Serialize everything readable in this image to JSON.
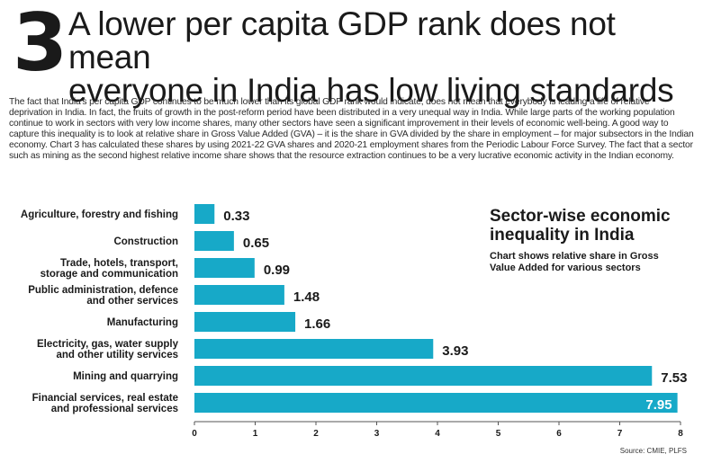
{
  "header": {
    "number": "3",
    "headline_line1": "A lower per capita GDP rank does not mean",
    "headline_line2": "everyone in India has low living standards"
  },
  "intro": "The fact that India's per capita GDP continues to be much lower than its global GDP rank would indicate, does not mean that everybody is leading a life of relative deprivation in India. In fact, the fruits of growth in the post-reform period have been distributed in a very unequal way in India. While large parts of the working population continue to work in sectors with very low income shares, many other sectors have seen a significant improvement in their levels of economic well-being. A good way to capture this inequality is to look at relative share in Gross Value Added (GVA) – it is the share in GVA divided by the share in employment – for major subsectors in the Indian economy. Chart 3 has calculated these shares by using 2021-22 GVA shares and 2020-21 employment shares from the Periodic Labour Force Survey. The fact that a sector such as mining as the second highest relative income share shows that the resource extraction continues to be a very lucrative economic activity in the Indian economy.",
  "annotation": {
    "title_line1": "Sector-wise economic",
    "title_line2": "inequality in India",
    "subtitle_line1": "Chart shows relative share in Gross",
    "subtitle_line2": "Value Added for various sectors"
  },
  "source": "Source: CMIE, PLFS",
  "colors": {
    "bar": "#17a9c8",
    "text": "#1a1a1a",
    "inside_label": "#ffffff"
  },
  "chart_data": {
    "type": "bar",
    "orientation": "horizontal",
    "title": "Sector-wise economic inequality in India",
    "subtitle": "Chart shows relative share in Gross Value Added for various sectors",
    "categories": [
      [
        "Agriculture, forestry and fishing"
      ],
      [
        "Construction"
      ],
      [
        "Trade, hotels, transport,",
        "storage and communication"
      ],
      [
        "Public administration, defence",
        "and other services"
      ],
      [
        "Manufacturing"
      ],
      [
        "Electricity, gas, water supply",
        "and other utility services"
      ],
      [
        "Mining and quarrying"
      ],
      [
        "Financial services, real estate",
        "and professional services"
      ]
    ],
    "values": [
      0.33,
      0.65,
      0.99,
      1.48,
      1.66,
      3.93,
      7.53,
      7.95
    ],
    "value_labels": [
      "0.33",
      "0.65",
      "0.99",
      "1.48",
      "1.66",
      "3.93",
      "7.53",
      "7.95"
    ],
    "xlim": [
      0,
      8
    ],
    "xticks": [
      0,
      1,
      2,
      3,
      4,
      5,
      6,
      7,
      8
    ],
    "grid": false,
    "legend": "none"
  }
}
